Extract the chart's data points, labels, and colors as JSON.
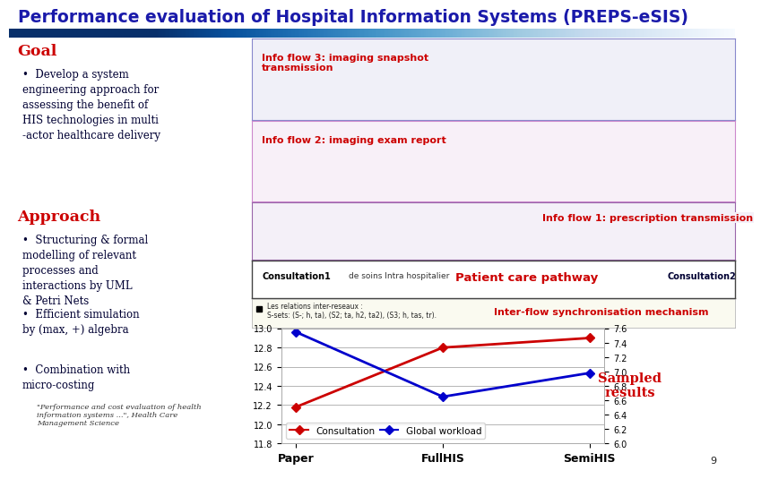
{
  "title": "Performance evaluation of Hospital Information Systems (PREPS-eSIS)",
  "title_color": "#1a1aaa",
  "background_color": "#ffffff",
  "left_panel": {
    "goal_title": "Goal",
    "goal_color": "#cc0000",
    "goal_text": "Develop a system\nengineering approach for\nassessing the benefit of\nHIS technologies in multi\n-actor healthcare delivery",
    "approach_title": "Approach",
    "approach_color": "#cc0000",
    "approach_bullets": [
      "Structuring & formal\nmodelling of relevant\nprocesses and\ninteractions by UML\n& Petri Nets",
      "Efficient simulation\nby (max, +) algebra",
      "Combination with\nmicro-costing"
    ],
    "footnote": "\"Performance and cost evaluation of health\ninformation systems ...\", Health Care\nManagement Science"
  },
  "chart": {
    "x_labels": [
      "Paper",
      "FullHIS",
      "SemiHIS"
    ],
    "consultation": [
      12.18,
      12.8,
      12.9
    ],
    "global_workload": [
      7.55,
      6.65,
      6.98
    ],
    "left_ylim": [
      11.8,
      13.0
    ],
    "right_ylim": [
      6.0,
      7.6
    ],
    "left_yticks": [
      11.8,
      12.0,
      12.2,
      12.4,
      12.6,
      12.8,
      13.0
    ],
    "right_yticks": [
      6.0,
      6.2,
      6.4,
      6.6,
      6.8,
      7.0,
      7.2,
      7.4,
      7.6
    ],
    "consultation_color": "#cc0000",
    "workload_color": "#0000cc",
    "sampled_label": "Sampled\nresults",
    "sampled_color": "#cc0000"
  },
  "info_flow_3_label": "Info flow 3: imaging snapshot\ntransmission",
  "info_flow_2_label": "Info flow 2: imaging exam report",
  "info_flow_1_label": "Info flow 1: prescription transmission",
  "consultation1_label": "Consultation1",
  "consultation2_label": "Consultation2",
  "patient_care_label": "Patient care pathway",
  "inter_flow_label": "Inter-flow synchronisation mechanism",
  "de_soins_label": "de soins Intra hospitalier",
  "inter_legend_text": "Les relations inter-reseaux :\nS-sets: (S-; h, ta), (S2; ta, h2, ta2), (S3; h, tas, tr).",
  "bottom_bar_color": "#2222aa",
  "page_num": "9"
}
